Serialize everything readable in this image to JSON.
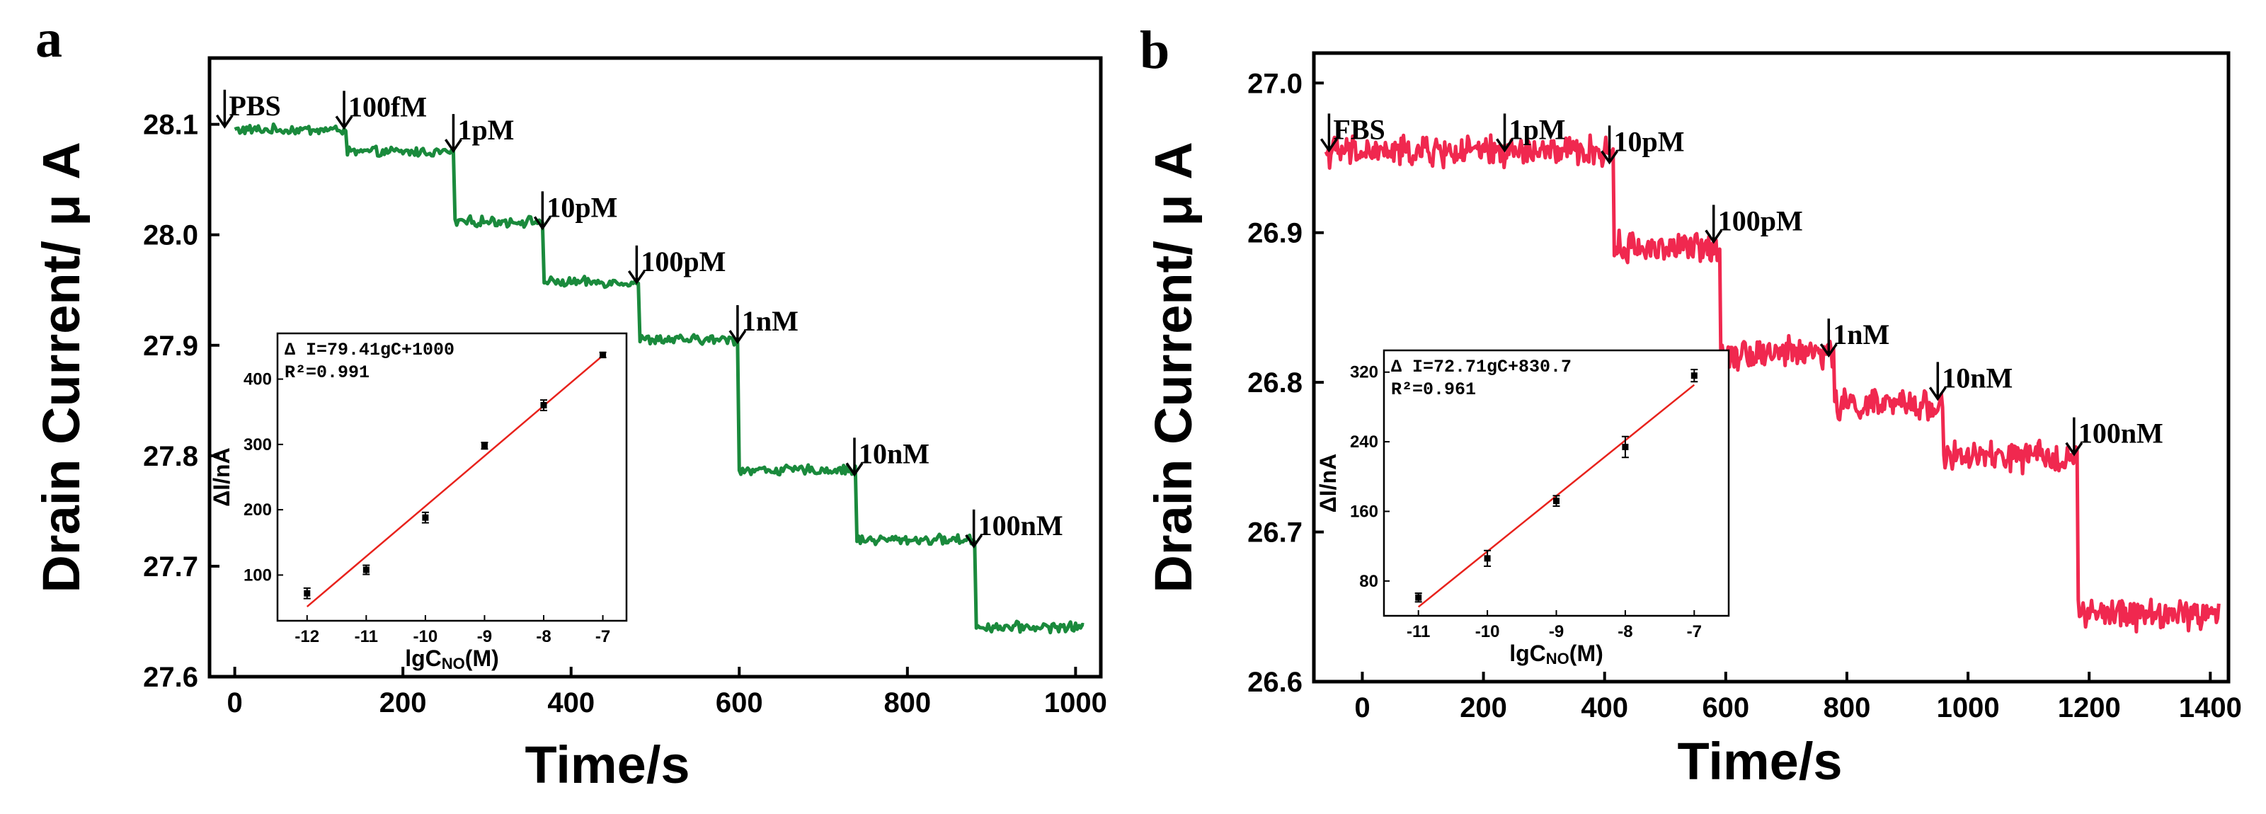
{
  "chart_data": [
    {
      "panel_label": "a",
      "type": "line",
      "xlabel": "Time/s",
      "ylabel": "Drain Current/ μ A",
      "xlim": [
        -30,
        1030
      ],
      "ylim": [
        27.6,
        28.16
      ],
      "xticks": [
        0,
        200,
        400,
        600,
        800,
        1000
      ],
      "yticks": [
        27.6,
        27.7,
        27.8,
        27.9,
        28.0,
        28.1
      ],
      "ytick_decimals": 1,
      "series": [
        {
          "color": "#1a8a3c",
          "noise": 0.0035,
          "x_start": 0,
          "x_end": 1010,
          "levels": [
            {
              "from": 0,
              "level": 28.095
            },
            {
              "from": 133,
              "level": 28.075
            },
            {
              "from": 262,
              "level": 28.012
            },
            {
              "from": 368,
              "level": 27.957
            },
            {
              "from": 481,
              "level": 27.905
            },
            {
              "from": 600,
              "level": 27.787
            },
            {
              "from": 740,
              "level": 27.724
            },
            {
              "from": 882,
              "level": 27.645
            }
          ]
        }
      ],
      "events": [
        {
          "t": -12,
          "y": 28.098,
          "label": "PBS"
        },
        {
          "t": 130,
          "y": 28.097,
          "label": "100fM"
        },
        {
          "t": 260,
          "y": 28.076,
          "label": "1pM"
        },
        {
          "t": 366,
          "y": 28.006,
          "label": "10pM"
        },
        {
          "t": 478,
          "y": 27.957,
          "label": "100pM"
        },
        {
          "t": 598,
          "y": 27.903,
          "label": "1nM"
        },
        {
          "t": 737,
          "y": 27.783,
          "label": "10nM"
        },
        {
          "t": 879,
          "y": 27.718,
          "label": "100nM"
        }
      ],
      "inset": {
        "type": "scatter",
        "xlabel": "lgC_NO(M)",
        "xlabel_main": "lgC",
        "xlabel_sub": "NO",
        "xlabel_tail": "(M)",
        "ylabel": "ΔI/nA",
        "equation": "Δ I=79.41gC+1000",
        "r2": "R²=0.991",
        "xlim": [
          -12.5,
          -6.6
        ],
        "ylim": [
          30,
          470
        ],
        "xticks": [
          -12,
          -11,
          -10,
          -9,
          -8,
          -7
        ],
        "yticks": [
          100,
          200,
          300,
          400
        ],
        "points": [
          {
            "x": -12,
            "y": 72,
            "err": 8
          },
          {
            "x": -11,
            "y": 108,
            "err": 7
          },
          {
            "x": -10,
            "y": 188,
            "err": 8
          },
          {
            "x": -9,
            "y": 298,
            "err": 5
          },
          {
            "x": -8,
            "y": 360,
            "err": 8
          },
          {
            "x": -7,
            "y": 437,
            "err": 4
          }
        ],
        "fit": {
          "slope": 79.4,
          "intercept": 1000,
          "x_from": -12,
          "x_to": -7
        },
        "fit_color": "#e8221c"
      }
    },
    {
      "panel_label": "b",
      "type": "line",
      "xlabel": "Time/s",
      "ylabel": "Drain Current/ μ A",
      "xlim": [
        -80,
        1430
      ],
      "ylim": [
        26.6,
        27.02
      ],
      "xticks": [
        0,
        200,
        400,
        600,
        800,
        1000,
        1200,
        1400
      ],
      "yticks": [
        26.6,
        26.7,
        26.8,
        26.9,
        27.0
      ],
      "ytick_decimals": 1,
      "series": [
        {
          "color": "#f0284f",
          "noise": 0.008,
          "x_start": -60,
          "x_end": 1415,
          "levels": [
            {
              "from": -60,
              "level": 26.954
            },
            {
              "from": 415,
              "level": 26.89
            },
            {
              "from": 592,
              "level": 26.82
            },
            {
              "from": 780,
              "level": 26.785
            },
            {
              "from": 960,
              "level": 26.75
            },
            {
              "from": 1182,
              "level": 26.645
            }
          ]
        }
      ],
      "events": [
        {
          "t": -55,
          "y": 26.955,
          "label": "FBS"
        },
        {
          "t": 235,
          "y": 26.955,
          "label": "1pM"
        },
        {
          "t": 408,
          "y": 26.947,
          "label": "10pM"
        },
        {
          "t": 580,
          "y": 26.894,
          "label": "100pM"
        },
        {
          "t": 770,
          "y": 26.818,
          "label": "1nM"
        },
        {
          "t": 950,
          "y": 26.789,
          "label": "10nM"
        },
        {
          "t": 1175,
          "y": 26.752,
          "label": "100nM"
        }
      ],
      "inset": {
        "type": "scatter",
        "xlabel": "lgC_NO(M)",
        "xlabel_main": "lgC",
        "xlabel_sub": "NO",
        "xlabel_tail": "(M)",
        "ylabel": "ΔI/nA",
        "equation": "Δ I=72.71gC+830.7",
        "r2": "R²=0.961",
        "xlim": [
          -11.5,
          -6.5
        ],
        "ylim": [
          40,
          345
        ],
        "xticks": [
          -11,
          -10,
          -9,
          -8,
          -7
        ],
        "yticks": [
          80,
          160,
          240,
          320
        ],
        "points": [
          {
            "x": -11,
            "y": 61,
            "err": 5
          },
          {
            "x": -10,
            "y": 106,
            "err": 9
          },
          {
            "x": -9,
            "y": 172,
            "err": 6
          },
          {
            "x": -8,
            "y": 234,
            "err": 12
          },
          {
            "x": -7,
            "y": 316,
            "err": 7
          }
        ],
        "fit": {
          "slope": 72.71,
          "intercept": 830.7,
          "x_from": -11,
          "x_to": -7
        },
        "fit_color": "#e8221c"
      }
    }
  ]
}
